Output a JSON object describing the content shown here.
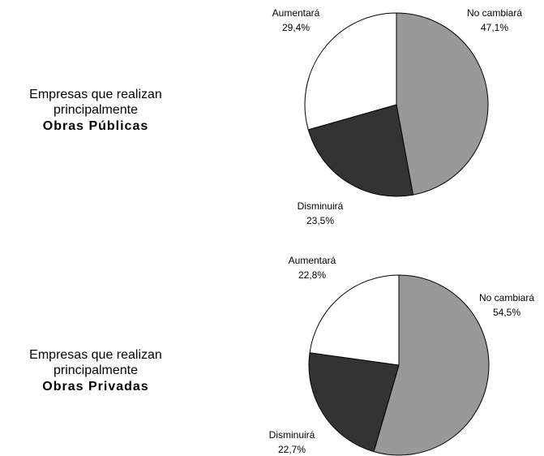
{
  "chart_data": [
    {
      "type": "pie",
      "title_lines": [
        "Empresas que realizan",
        "principalmente",
        "Obras Públicas"
      ],
      "categories": [
        "No cambiará",
        "Disminuirá",
        "Aumentará"
      ],
      "values": [
        47.1,
        23.5,
        29.4
      ],
      "value_labels": [
        "47,1%",
        "23,5%",
        "29,4%"
      ],
      "colors": [
        "#999999",
        "#333333",
        "#ffffff"
      ]
    },
    {
      "type": "pie",
      "title_lines": [
        "Empresas que realizan",
        "principalmente",
        "Obras Privadas"
      ],
      "categories": [
        "No cambiará",
        "Disminuirá",
        "Aumentará"
      ],
      "values": [
        54.5,
        22.7,
        22.8
      ],
      "value_labels": [
        "54,5%",
        "22,7%",
        "22,8%"
      ],
      "colors": [
        "#999999",
        "#333333",
        "#ffffff"
      ]
    }
  ]
}
